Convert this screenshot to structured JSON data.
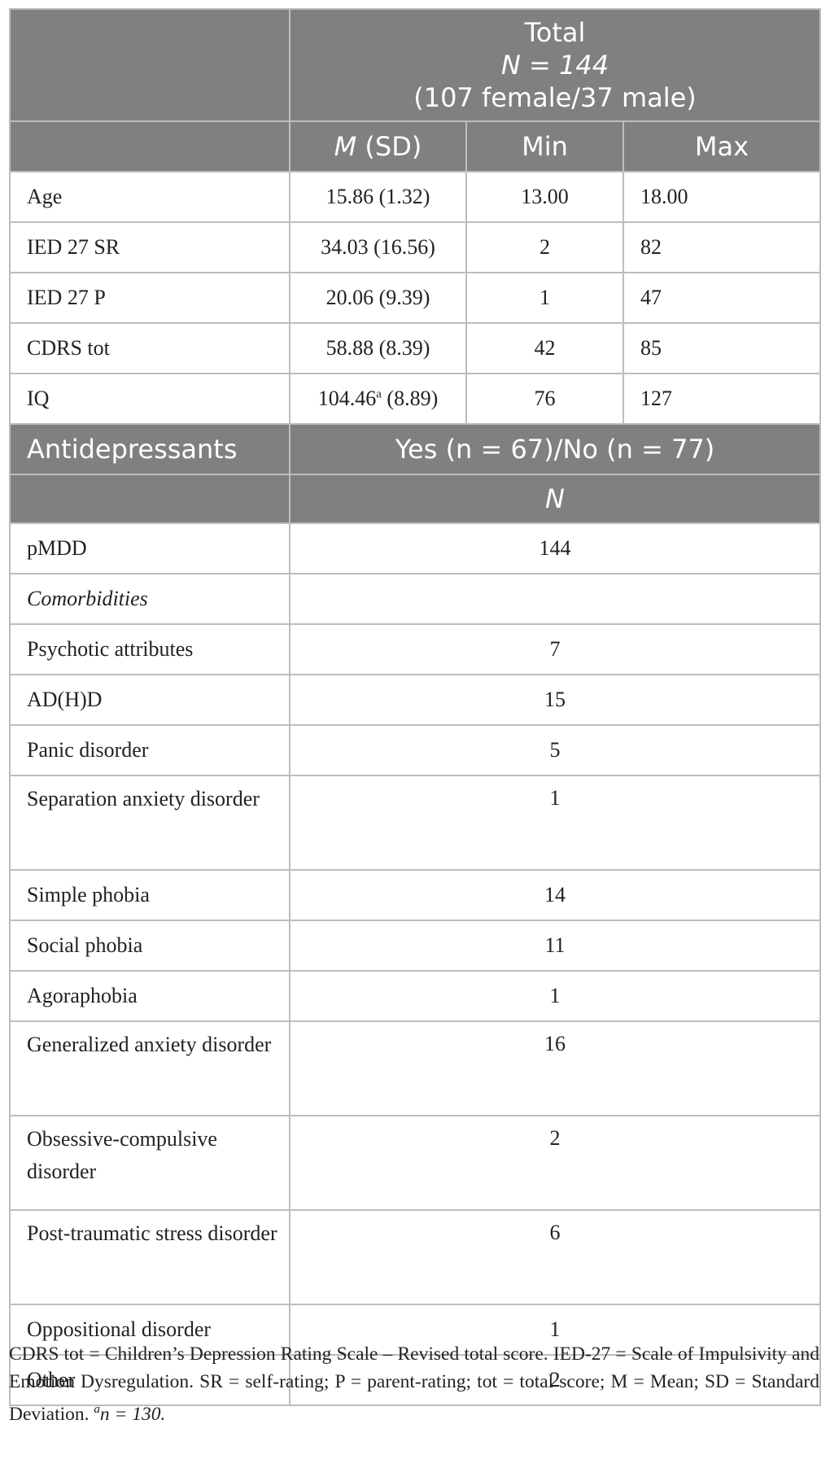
{
  "header": {
    "title": "Total",
    "n_line": "N = 144",
    "sex_line": "(107 female/37 male)",
    "col_msd_m": "M",
    "col_msd_rest": " (SD)",
    "col_min": "Min",
    "col_max": "Max"
  },
  "continuous_rows": [
    {
      "label": "Age",
      "msd": "15.86 (1.32)",
      "sup": "",
      "msd_tail": "",
      "min": "13.00",
      "max": "18.00"
    },
    {
      "label": "IED 27 SR",
      "msd": "34.03 (16.56)",
      "sup": "",
      "msd_tail": "",
      "min": "2",
      "max": "82"
    },
    {
      "label": "IED 27 P",
      "msd": "20.06 (9.39)",
      "sup": "",
      "msd_tail": "",
      "min": "1",
      "max": "47"
    },
    {
      "label": "CDRS tot",
      "msd": "58.88 (8.39)",
      "sup": "",
      "msd_tail": "",
      "min": "42",
      "max": "85"
    },
    {
      "label": "IQ",
      "msd": "104.46",
      "sup": "a",
      "msd_tail": " (8.89)",
      "min": "76",
      "max": "127"
    }
  ],
  "antidep": {
    "label": "Antidepressants",
    "value": "Yes (n = 67)/No (n = 77)",
    "n_header": "N"
  },
  "count_rows": [
    {
      "label": "pMDD",
      "n": "144"
    },
    {
      "label": "Comorbidities",
      "n": ""
    },
    {
      "label": "Psychotic attributes",
      "n": "7"
    },
    {
      "label": "AD(H)D",
      "n": "15"
    },
    {
      "label": "Panic disorder",
      "n": "5"
    },
    {
      "label": "Separation anxiety disorder",
      "n": "1"
    },
    {
      "label": "Simple phobia",
      "n": "14"
    },
    {
      "label": "Social phobia",
      "n": "11"
    },
    {
      "label": "Agoraphobia",
      "n": "1"
    },
    {
      "label": "Generalized anxiety disorder",
      "n": "16"
    },
    {
      "label": "Obsessive-compulsive disorder",
      "n": "2"
    },
    {
      "label": "Post-traumatic stress disorder",
      "n": "6"
    },
    {
      "label": "Oppositional disorder",
      "n": "1"
    },
    {
      "label": "Other",
      "n": "2"
    }
  ],
  "footnote": {
    "text": "CDRS tot = Children’s Depression Rating Scale – Revised total score. IED-27 = Scale of Impulsivity and Emotion Dysregulation. SR = self-rating; P = parent-rating; tot = total score; M = Mean; SD = Standard Deviation. ",
    "sup": "a",
    "tail": "n = 130."
  },
  "colors": {
    "header_bg": "#808080",
    "border": "#bdbdbd"
  }
}
